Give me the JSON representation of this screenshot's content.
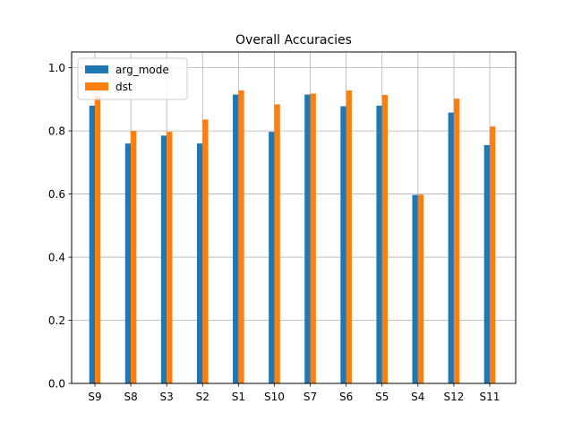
{
  "chart_data": {
    "type": "bar",
    "title": "Overall Accuracies",
    "xlabel": "",
    "ylabel": "",
    "categories": [
      "S9",
      "S8",
      "S3",
      "S2",
      "S1",
      "S10",
      "S7",
      "S6",
      "S5",
      "S4",
      "S12",
      "S11"
    ],
    "series": [
      {
        "name": "arg_mode",
        "color": "#1f77b4",
        "values": [
          0.88,
          0.76,
          0.785,
          0.76,
          0.915,
          0.797,
          0.915,
          0.878,
          0.88,
          0.597,
          0.858,
          0.755
        ]
      },
      {
        "name": "dst",
        "color": "#ff7f0e",
        "values": [
          0.91,
          0.8,
          0.797,
          0.836,
          0.928,
          0.884,
          0.918,
          0.928,
          0.914,
          0.598,
          0.902,
          0.814
        ]
      }
    ],
    "ylim": [
      0,
      1.05
    ],
    "yticks": [
      "0.0",
      "0.2",
      "0.4",
      "0.6",
      "0.8",
      "1.0"
    ],
    "grid": true,
    "legend_position": "top-left"
  }
}
